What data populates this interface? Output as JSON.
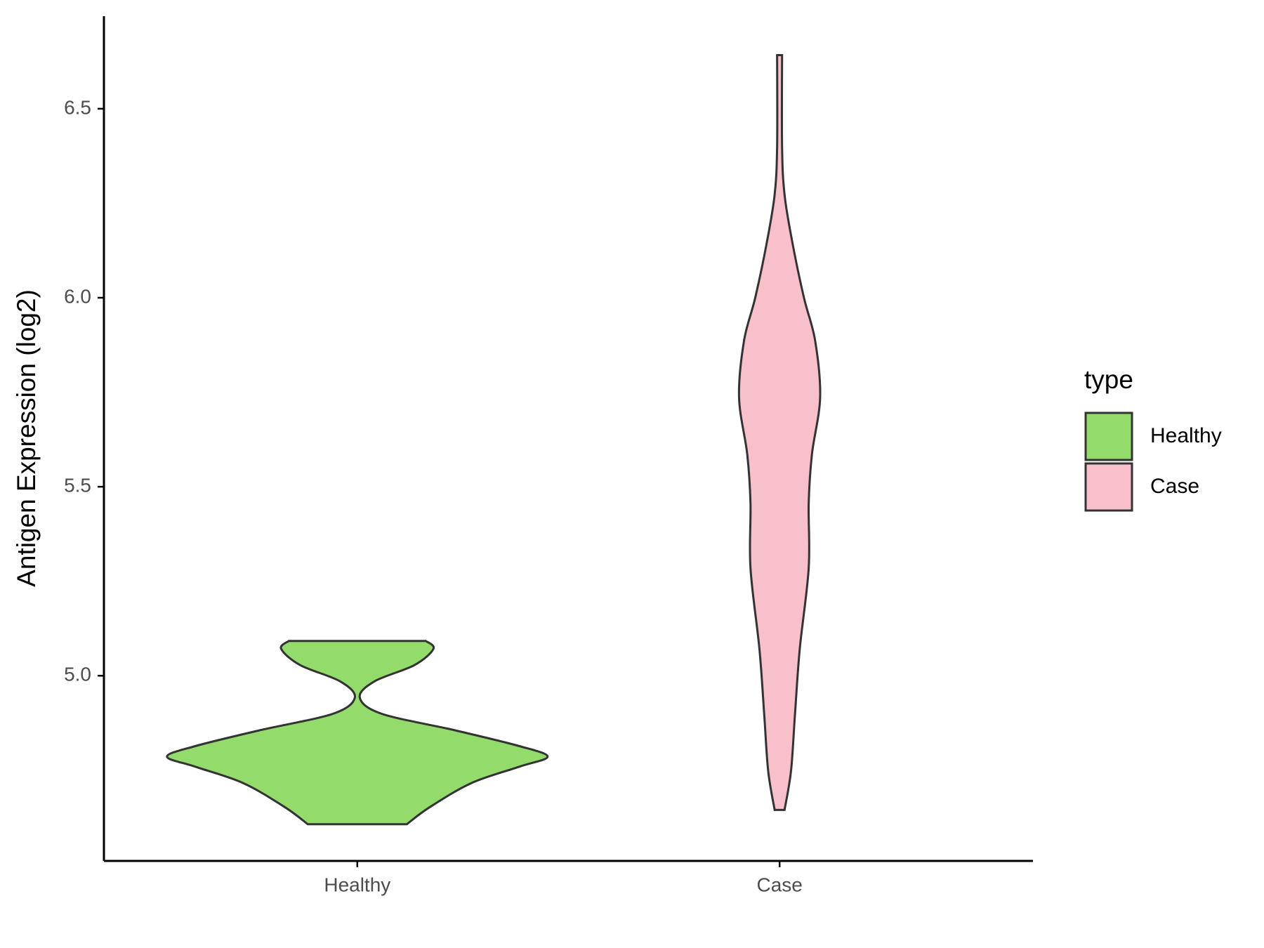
{
  "chart_data": {
    "type": "violin",
    "ylabel": "Antigen Expression (log2)",
    "categories": [
      "Healthy",
      "Case"
    ],
    "ylim": [
      4.51,
      6.745
    ],
    "yticks": [
      {
        "value": 5,
        "label": "5.0"
      },
      5.5,
      {
        "value": 6,
        "label": "6.0"
      },
      6.5
    ],
    "legend_title": "type",
    "legend_position": "right",
    "series": [
      {
        "name": "Healthy",
        "color": "#93DB6B",
        "y": [
          4.607,
          4.652,
          4.716,
          4.759,
          4.786,
          4.814,
          4.856,
          4.899,
          4.942,
          4.985,
          5.028,
          5.071,
          5.092
        ],
        "width": [
          0.26,
          0.38,
          0.6,
          0.85,
          1,
          0.85,
          0.51,
          0.13,
          0.013,
          0.09,
          0.3,
          0.4,
          0.36
        ]
      },
      {
        "name": "Case",
        "color": "#F7C0CB",
        "y": [
          4.645,
          4.748,
          4.899,
          5.071,
          5.285,
          5.457,
          5.586,
          5.736,
          5.886,
          6.0,
          6.144,
          6.273,
          6.401,
          6.642
        ],
        "width": [
          0.026,
          0.06,
          0.081,
          0.106,
          0.153,
          0.153,
          0.17,
          0.213,
          0.187,
          0.128,
          0.068,
          0.026,
          0.013,
          0.013
        ]
      }
    ]
  }
}
